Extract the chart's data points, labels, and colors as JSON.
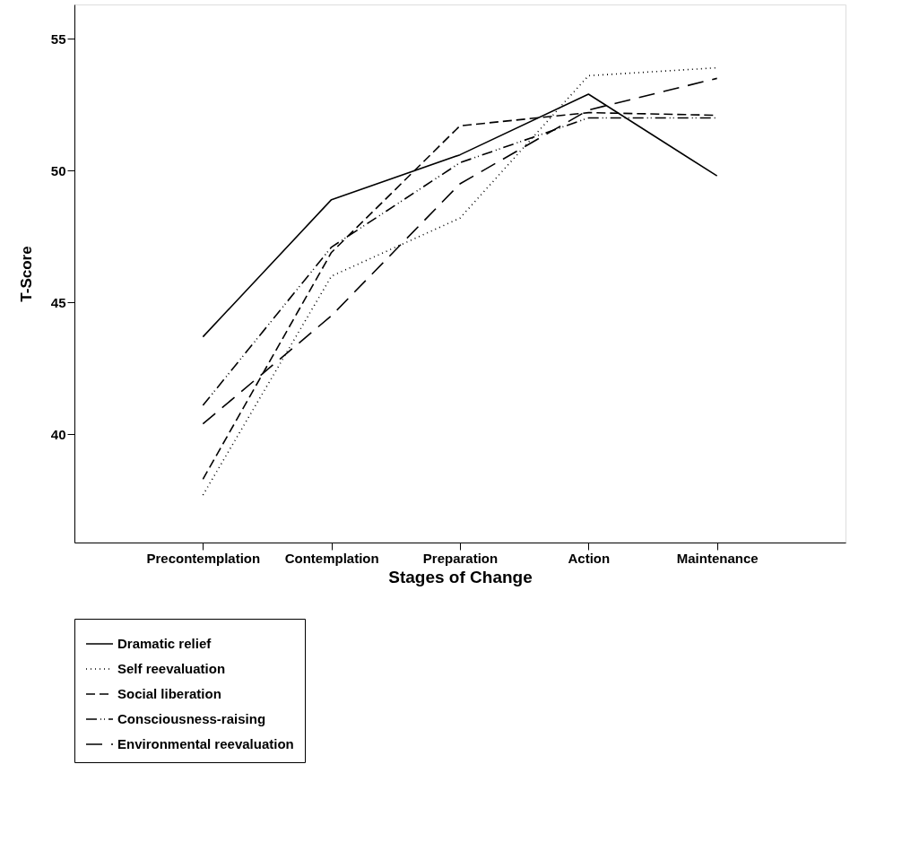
{
  "chart_data": {
    "type": "line",
    "xlabel": "Stages of Change",
    "ylabel": "T-Score",
    "categories": [
      "Precontemplation",
      "Contemplation",
      "Preparation",
      "Action",
      "Maintenance"
    ],
    "series": [
      {
        "name": "Dramatic relief",
        "color": "#000000",
        "line_style": "solid",
        "values": [
          43.7,
          48.9,
          50.6,
          52.9,
          49.8
        ]
      },
      {
        "name": "Self reevaluation",
        "color": "#000000",
        "line_style": "dotted",
        "values": [
          37.7,
          46.0,
          48.2,
          53.6,
          53.9
        ]
      },
      {
        "name": "Social liberation",
        "color": "#000000",
        "line_style": "dashed",
        "values": [
          38.3,
          46.9,
          51.7,
          52.2,
          52.1
        ]
      },
      {
        "name": "Consciousness-raising",
        "color": "#000000",
        "line_style": "dashdot",
        "values": [
          41.1,
          47.1,
          50.3,
          52.0,
          52.0
        ]
      },
      {
        "name": "Environmental reevaluation",
        "color": "#000000",
        "line_style": "longdash",
        "values": [
          40.4,
          44.5,
          49.5,
          52.3,
          53.5
        ]
      }
    ],
    "ylim": [
      35.9,
      56.3
    ],
    "yticks": [
      40,
      45,
      50,
      55
    ],
    "grid": false,
    "legend": "bottom left",
    "marker": "none"
  }
}
